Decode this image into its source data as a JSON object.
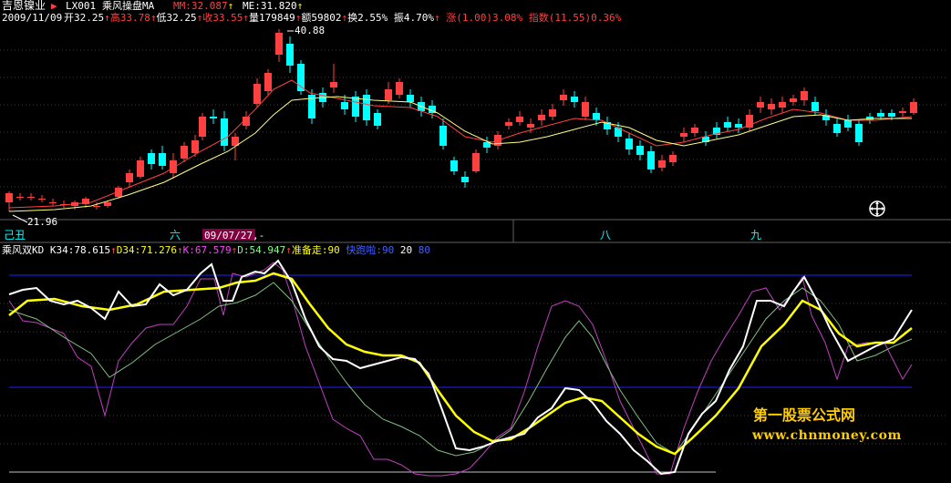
{
  "header": {
    "stock_name": "吉恩镍业",
    "code": "LX001",
    "indicator": "乘风操盘MA",
    "mm_label": "MM:",
    "mm_value": "32.087",
    "me_label": "ME:",
    "me_value": "31.820"
  },
  "quote": {
    "date": "2009/11/09",
    "open_label": "开",
    "open": "32.25",
    "high_label": "高",
    "high": "33.78",
    "low_label": "低",
    "low": "32.25",
    "close_label": "收",
    "close": "33.55",
    "volume_label": "量",
    "volume": "179849",
    "amount_label": "额",
    "amount": "59802",
    "turnover_label": "换",
    "turnover": "2.55%",
    "amplitude_label": "振",
    "amplitude": "4.70%",
    "change_label": "涨",
    "change": "(1.00)3.08%",
    "index_label": "指数",
    "index_change": "(11.55)0.36%"
  },
  "price_annotations": {
    "high_mark": "40.88",
    "low_mark": "21.96"
  },
  "month_labels": {
    "m1": "己丑",
    "m2": "六",
    "cursor_date": "09/07/27,-",
    "m3": "八",
    "m4": "九"
  },
  "kd_header": {
    "name": "乘风双KD",
    "k34_label": "K34:",
    "k34": "78.615",
    "d34_label": "D34:",
    "d34": "71.276",
    "k_label": "K:",
    "k": "67.579",
    "d_label": "D:",
    "d": "54.947",
    "ready_label": "准备走:",
    "ready": "90",
    "fast_label": "快跑啦:",
    "fast": "90",
    "level1": "20",
    "level2": "80"
  },
  "watermark": {
    "line1": "第一股票公式网",
    "line2": "www.chnmoney.com"
  },
  "colors": {
    "up": "#ff4040",
    "down": "#00ffff",
    "ma_fast": "#ff4040",
    "ma_slow": "#ffff80",
    "k34": "#ffffff",
    "d34": "#ffff00",
    "k": "#c040c0",
    "d": "#80c080",
    "level": "#2020ff"
  },
  "icons": {
    "drag_cursor": "move-cursor-icon",
    "red_flag": "triangle-flag-icon"
  }
}
